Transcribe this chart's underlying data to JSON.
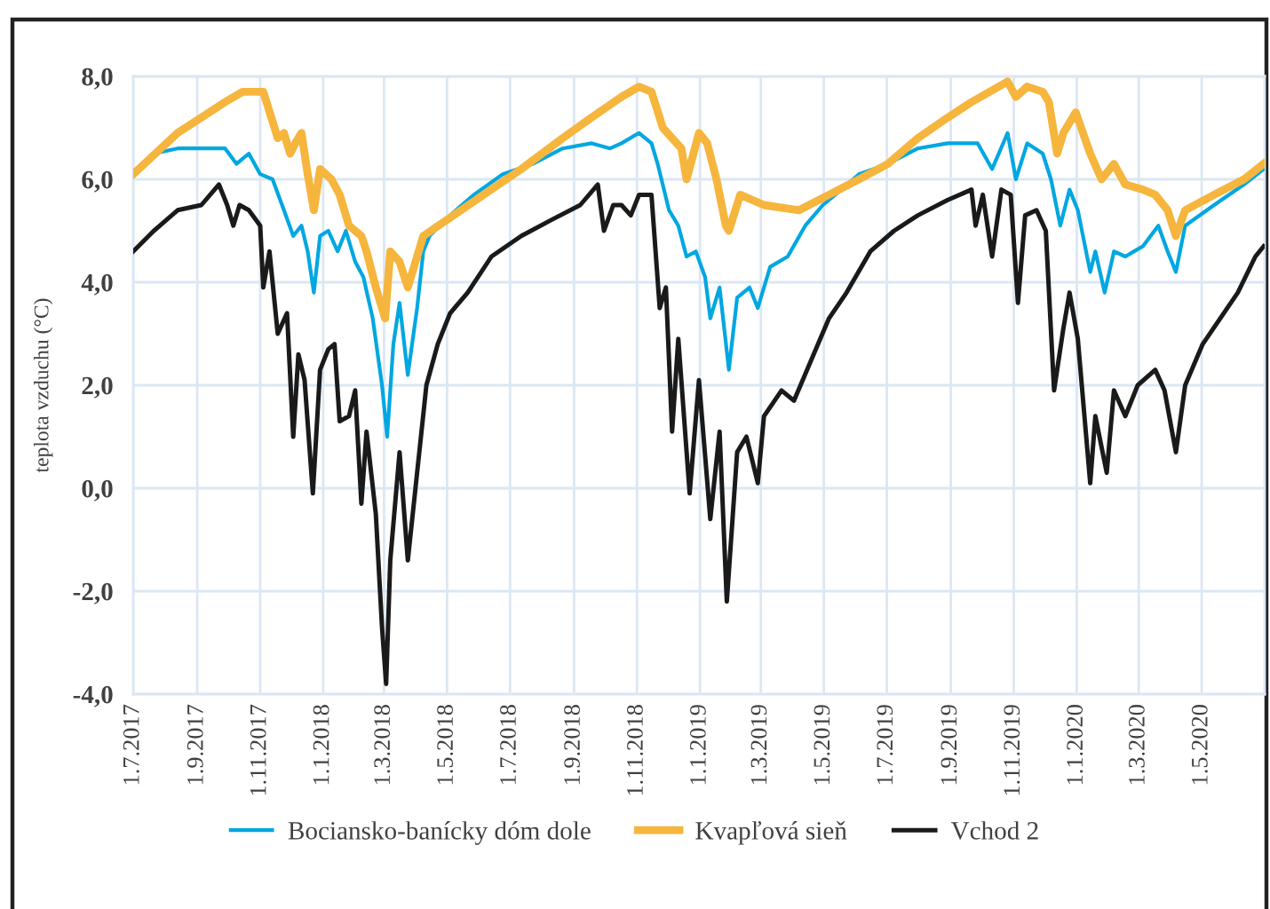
{
  "chart_data": {
    "type": "line",
    "ylabel": "teplota vzduchu (°C)",
    "xlim": [
      "2017-07-01",
      "2020-07-01"
    ],
    "xticks": [
      {
        "value": "2017-07-01",
        "label": "1.7.2017"
      },
      {
        "value": "2017-09-01",
        "label": "1.9.2017"
      },
      {
        "value": "2017-11-01",
        "label": "1.11.2017"
      },
      {
        "value": "2018-01-01",
        "label": "1.1.2018"
      },
      {
        "value": "2018-03-01",
        "label": "1.3.2018"
      },
      {
        "value": "2018-05-01",
        "label": "1.5.2018"
      },
      {
        "value": "2018-07-01",
        "label": "1.7.2018"
      },
      {
        "value": "2018-09-01",
        "label": "1.9.2018"
      },
      {
        "value": "2018-11-01",
        "label": "1.11.2018"
      },
      {
        "value": "2019-01-01",
        "label": "1.1.2019"
      },
      {
        "value": "2019-03-01",
        "label": "1.3.2019"
      },
      {
        "value": "2019-05-01",
        "label": "1.5.2019"
      },
      {
        "value": "2019-07-01",
        "label": "1.7.2019"
      },
      {
        "value": "2019-09-01",
        "label": "1.9.2019"
      },
      {
        "value": "2019-11-01",
        "label": "1.11.2019"
      },
      {
        "value": "2020-01-01",
        "label": "1.1.2020"
      },
      {
        "value": "2020-03-01",
        "label": "1.3.2020"
      },
      {
        "value": "2020-05-01",
        "label": "1.5.2020"
      }
    ],
    "ylim": [
      -4,
      8
    ],
    "yticks": [
      {
        "value": -4,
        "label": "-4,0"
      },
      {
        "value": -2,
        "label": "-2,0"
      },
      {
        "value": 0,
        "label": "0,0"
      },
      {
        "value": 2,
        "label": "2,0"
      },
      {
        "value": 4,
        "label": "4,0"
      },
      {
        "value": 6,
        "label": "6,0"
      },
      {
        "value": 8,
        "label": "8,0"
      }
    ],
    "grid": true,
    "legend": "bottom",
    "marker": "none",
    "line_style": "solid",
    "series": [
      {
        "name": "Bociansko-banícky dóm dole",
        "color": "#00a7e1",
        "x": [
          "2017-07-01",
          "2017-07-21",
          "2017-08-13",
          "2017-09-05",
          "2017-09-28",
          "2017-10-09",
          "2017-10-21",
          "2017-11-01",
          "2017-11-13",
          "2017-11-24",
          "2017-12-03",
          "2017-12-11",
          "2017-12-17",
          "2017-12-23",
          "2017-12-29",
          "2018-01-06",
          "2018-01-15",
          "2018-01-23",
          "2018-02-01",
          "2018-02-09",
          "2018-02-18",
          "2018-02-27",
          "2018-03-04",
          "2018-03-10",
          "2018-03-16",
          "2018-03-24",
          "2018-04-02",
          "2018-04-08",
          "2018-04-14",
          "2018-05-04",
          "2018-05-27",
          "2018-06-24",
          "2018-07-23",
          "2018-08-21",
          "2018-09-18",
          "2018-10-06",
          "2018-10-17",
          "2018-11-03",
          "2018-11-15",
          "2018-11-21",
          "2018-12-02",
          "2018-12-11",
          "2018-12-19",
          "2018-12-28",
          "2019-01-06",
          "2019-01-11",
          "2019-01-20",
          "2019-01-29",
          "2019-02-06",
          "2019-02-18",
          "2019-02-26",
          "2019-03-10",
          "2019-03-27",
          "2019-04-13",
          "2019-04-30",
          "2019-05-18",
          "2019-06-04",
          "2019-07-02",
          "2019-07-31",
          "2019-08-29",
          "2019-09-27",
          "2019-10-11",
          "2019-10-26",
          "2019-11-03",
          "2019-11-14",
          "2019-11-29",
          "2019-12-07",
          "2019-12-16",
          "2019-12-25",
          "2020-01-02",
          "2020-01-14",
          "2020-01-19",
          "2020-01-28",
          "2020-02-06",
          "2020-02-17",
          "2020-03-05",
          "2020-03-20",
          "2020-03-29",
          "2020-04-06",
          "2020-04-15",
          "2020-05-13",
          "2020-06-11",
          "2020-06-30"
        ],
        "values": [
          6.1,
          6.5,
          6.6,
          6.6,
          6.6,
          6.3,
          6.5,
          6.1,
          6.0,
          5.4,
          4.9,
          5.1,
          4.6,
          3.8,
          4.9,
          5.0,
          4.6,
          5.0,
          4.4,
          4.1,
          3.3,
          2.0,
          1.0,
          2.8,
          3.6,
          2.2,
          3.5,
          4.6,
          4.9,
          5.3,
          5.7,
          6.1,
          6.3,
          6.6,
          6.7,
          6.6,
          6.7,
          6.9,
          6.7,
          6.3,
          5.4,
          5.1,
          4.5,
          4.6,
          4.1,
          3.3,
          3.9,
          2.3,
          3.7,
          3.9,
          3.5,
          4.3,
          4.5,
          5.1,
          5.5,
          5.8,
          6.1,
          6.3,
          6.6,
          6.7,
          6.7,
          6.2,
          6.9,
          6.0,
          6.7,
          6.5,
          6.0,
          5.1,
          5.8,
          5.4,
          4.2,
          4.6,
          3.8,
          4.6,
          4.5,
          4.7,
          5.1,
          4.6,
          4.2,
          5.1,
          5.5,
          5.9,
          6.2
        ]
      },
      {
        "name": "Kvapľová sieň",
        "color": "#f6b53d",
        "x": [
          "2017-07-01",
          "2017-08-13",
          "2017-09-28",
          "2017-10-15",
          "2017-11-04",
          "2017-11-18",
          "2017-11-24",
          "2017-11-30",
          "2017-12-05",
          "2017-12-11",
          "2017-12-17",
          "2017-12-23",
          "2017-12-29",
          "2018-01-09",
          "2018-01-17",
          "2018-01-26",
          "2018-02-07",
          "2018-02-12",
          "2018-02-21",
          "2018-03-02",
          "2018-03-07",
          "2018-03-16",
          "2018-03-24",
          "2018-04-08",
          "2018-07-12",
          "2018-08-21",
          "2018-09-18",
          "2018-10-17",
          "2018-11-03",
          "2018-11-15",
          "2018-11-26",
          "2018-12-14",
          "2018-12-19",
          "2018-12-31",
          "2019-01-08",
          "2019-01-17",
          "2019-01-26",
          "2019-01-29",
          "2019-02-09",
          "2019-03-04",
          "2019-04-07",
          "2019-05-06",
          "2019-06-04",
          "2019-07-02",
          "2019-07-31",
          "2019-08-29",
          "2019-09-21",
          "2019-10-26",
          "2019-11-03",
          "2019-11-14",
          "2019-11-29",
          "2019-12-05",
          "2019-12-13",
          "2019-12-19",
          "2019-12-31",
          "2020-01-14",
          "2020-01-25",
          "2020-02-06",
          "2020-02-17",
          "2020-03-05",
          "2020-03-17",
          "2020-03-29",
          "2020-04-06",
          "2020-04-15",
          "2020-05-13",
          "2020-06-11",
          "2020-06-30"
        ],
        "values": [
          6.1,
          6.9,
          7.5,
          7.7,
          7.7,
          6.8,
          6.9,
          6.5,
          6.7,
          6.9,
          6.1,
          5.4,
          6.2,
          6.0,
          5.7,
          5.1,
          4.9,
          4.6,
          3.9,
          3.3,
          4.6,
          4.4,
          3.9,
          4.9,
          6.2,
          6.8,
          7.2,
          7.6,
          7.8,
          7.7,
          7.0,
          6.6,
          6.0,
          6.9,
          6.7,
          6.0,
          5.1,
          5.0,
          5.7,
          5.5,
          5.4,
          5.7,
          6.0,
          6.3,
          6.8,
          7.2,
          7.5,
          7.9,
          7.6,
          7.8,
          7.7,
          7.5,
          6.5,
          6.9,
          7.3,
          6.5,
          6.0,
          6.3,
          5.9,
          5.8,
          5.7,
          5.4,
          4.9,
          5.4,
          5.7,
          6.0,
          6.3
        ]
      },
      {
        "name": "Vchod 2",
        "color": "#1a1a1a",
        "x": [
          "2017-07-01",
          "2017-07-21",
          "2017-08-13",
          "2017-09-05",
          "2017-09-22",
          "2017-09-30",
          "2017-10-06",
          "2017-10-12",
          "2017-10-21",
          "2017-11-01",
          "2017-11-04",
          "2017-11-10",
          "2017-11-18",
          "2017-11-27",
          "2017-12-03",
          "2017-12-08",
          "2017-12-14",
          "2017-12-22",
          "2017-12-29",
          "2018-01-06",
          "2018-01-12",
          "2018-01-17",
          "2018-01-26",
          "2018-02-01",
          "2018-02-07",
          "2018-02-12",
          "2018-02-21",
          "2018-02-27",
          "2018-03-03",
          "2018-03-07",
          "2018-03-16",
          "2018-03-24",
          "2018-04-02",
          "2018-04-11",
          "2018-04-22",
          "2018-05-04",
          "2018-05-21",
          "2018-06-13",
          "2018-07-12",
          "2018-08-09",
          "2018-09-07",
          "2018-09-24",
          "2018-09-30",
          "2018-10-09",
          "2018-10-17",
          "2018-10-26",
          "2018-11-03",
          "2018-11-15",
          "2018-11-23",
          "2018-11-29",
          "2018-12-05",
          "2018-12-11",
          "2018-12-22",
          "2018-12-31",
          "2019-01-11",
          "2019-01-20",
          "2019-01-27",
          "2019-02-06",
          "2019-02-15",
          "2019-02-26",
          "2019-03-04",
          "2019-03-21",
          "2019-04-02",
          "2019-04-19",
          "2019-05-06",
          "2019-05-23",
          "2019-06-15",
          "2019-07-08",
          "2019-07-31",
          "2019-08-29",
          "2019-09-21",
          "2019-09-25",
          "2019-10-02",
          "2019-10-11",
          "2019-10-20",
          "2019-10-29",
          "2019-11-05",
          "2019-11-12",
          "2019-11-23",
          "2019-12-02",
          "2019-12-10",
          "2019-12-19",
          "2019-12-25",
          "2020-01-02",
          "2020-01-14",
          "2020-01-19",
          "2020-01-30",
          "2020-02-06",
          "2020-02-17",
          "2020-02-29",
          "2020-03-17",
          "2020-03-26",
          "2020-04-06",
          "2020-04-15",
          "2020-05-02",
          "2020-05-19",
          "2020-06-05",
          "2020-06-22",
          "2020-06-30"
        ],
        "values": [
          4.6,
          5.0,
          5.4,
          5.5,
          5.9,
          5.5,
          5.1,
          5.5,
          5.4,
          5.1,
          3.9,
          4.6,
          3.0,
          3.4,
          1.0,
          2.6,
          2.1,
          -0.1,
          2.3,
          2.7,
          2.8,
          1.3,
          1.4,
          1.9,
          -0.3,
          1.1,
          -0.5,
          -2.7,
          -3.8,
          -1.4,
          0.7,
          -1.4,
          0.3,
          2.0,
          2.8,
          3.4,
          3.8,
          4.5,
          4.9,
          5.2,
          5.5,
          5.9,
          5.0,
          5.5,
          5.5,
          5.3,
          5.7,
          5.7,
          3.5,
          3.9,
          1.1,
          2.9,
          -0.1,
          2.1,
          -0.6,
          1.1,
          -2.2,
          0.7,
          1.0,
          0.1,
          1.4,
          1.9,
          1.7,
          2.5,
          3.3,
          3.8,
          4.6,
          5.0,
          5.3,
          5.6,
          5.8,
          5.1,
          5.7,
          4.5,
          5.8,
          5.7,
          3.6,
          5.3,
          5.4,
          5.0,
          1.9,
          3.1,
          3.8,
          2.9,
          0.1,
          1.4,
          0.3,
          1.9,
          1.4,
          2.0,
          2.3,
          1.9,
          0.7,
          2.0,
          2.8,
          3.3,
          3.8,
          4.5,
          4.7
        ]
      }
    ]
  }
}
